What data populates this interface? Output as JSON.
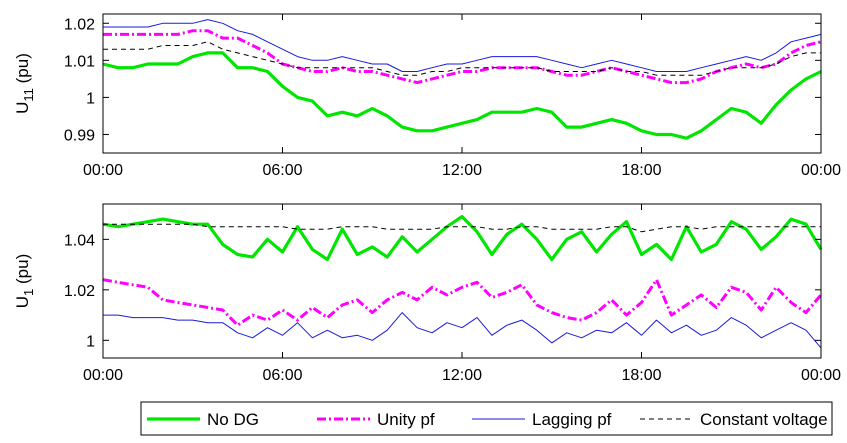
{
  "colors": {
    "no_dg": "#00e600",
    "unity_pf": "#ff00ff",
    "lagging_pf": "#1a1adc",
    "constant_voltage": "#000000"
  },
  "legend": {
    "placement": "bottom",
    "items": [
      {
        "label": "No DG",
        "style": "solid-thick",
        "color": "#00e600"
      },
      {
        "label": "Unity pf",
        "style": "dashdot-thick",
        "color": "#ff00ff"
      },
      {
        "label": "Lagging pf",
        "style": "solid-thin",
        "color": "#1a1adc"
      },
      {
        "label": "Constant voltage",
        "style": "dashed-thin",
        "color": "#000000"
      }
    ]
  },
  "chart_data": [
    {
      "type": "line",
      "title": "",
      "xlabel": "",
      "ylabel_main": "U",
      "ylabel_sub": "11",
      "ylabel_suffix": " (pu)",
      "xlim": [
        0,
        24
      ],
      "ylim": [
        0.985,
        1.0225
      ],
      "grid": false,
      "x_ticks": [
        0,
        6,
        12,
        18,
        24
      ],
      "x_tick_labels": [
        "00:00",
        "06:00",
        "12:00",
        "18:00",
        "00:00"
      ],
      "y_ticks": [
        0.99,
        1.0,
        1.01,
        1.02
      ],
      "y_tick_labels": [
        "0.99",
        "1",
        "1.01",
        "1.02"
      ],
      "x": [
        0,
        0.5,
        1,
        1.5,
        2,
        2.5,
        3,
        3.5,
        4,
        4.5,
        5,
        5.5,
        6,
        6.5,
        7,
        7.5,
        8,
        8.5,
        9,
        9.5,
        10,
        10.5,
        11,
        11.5,
        12,
        12.5,
        13,
        13.5,
        14,
        14.5,
        15,
        15.5,
        16,
        16.5,
        17,
        17.5,
        18,
        18.5,
        19,
        19.5,
        20,
        20.5,
        21,
        21.5,
        22,
        22.5,
        23,
        23.5,
        24
      ],
      "series": [
        {
          "name": "No DG",
          "values": [
            1.009,
            1.008,
            1.008,
            1.009,
            1.009,
            1.009,
            1.011,
            1.012,
            1.012,
            1.008,
            1.008,
            1.007,
            1.003,
            1.0,
            0.999,
            0.995,
            0.996,
            0.995,
            0.997,
            0.995,
            0.992,
            0.991,
            0.991,
            0.992,
            0.993,
            0.994,
            0.996,
            0.996,
            0.996,
            0.997,
            0.996,
            0.992,
            0.992,
            0.993,
            0.994,
            0.993,
            0.991,
            0.99,
            0.99,
            0.989,
            0.991,
            0.994,
            0.997,
            0.996,
            0.993,
            0.998,
            1.002,
            1.005,
            1.007
          ]
        },
        {
          "name": "Unity pf",
          "values": [
            1.017,
            1.017,
            1.017,
            1.017,
            1.017,
            1.017,
            1.018,
            1.018,
            1.016,
            1.016,
            1.014,
            1.012,
            1.009,
            1.008,
            1.007,
            1.007,
            1.008,
            1.007,
            1.007,
            1.006,
            1.005,
            1.004,
            1.005,
            1.006,
            1.007,
            1.007,
            1.008,
            1.008,
            1.008,
            1.008,
            1.007,
            1.006,
            1.006,
            1.007,
            1.008,
            1.007,
            1.006,
            1.005,
            1.004,
            1.004,
            1.005,
            1.007,
            1.008,
            1.009,
            1.008,
            1.009,
            1.012,
            1.014,
            1.015
          ]
        },
        {
          "name": "Lagging pf",
          "values": [
            1.019,
            1.019,
            1.019,
            1.019,
            1.02,
            1.02,
            1.02,
            1.021,
            1.02,
            1.018,
            1.017,
            1.015,
            1.013,
            1.011,
            1.01,
            1.01,
            1.011,
            1.01,
            1.009,
            1.009,
            1.007,
            1.007,
            1.008,
            1.009,
            1.009,
            1.01,
            1.011,
            1.011,
            1.011,
            1.011,
            1.01,
            1.009,
            1.008,
            1.009,
            1.01,
            1.009,
            1.008,
            1.007,
            1.007,
            1.007,
            1.008,
            1.009,
            1.01,
            1.011,
            1.01,
            1.012,
            1.015,
            1.016,
            1.017
          ]
        },
        {
          "name": "Constant voltage",
          "values": [
            1.013,
            1.013,
            1.013,
            1.013,
            1.014,
            1.014,
            1.014,
            1.015,
            1.013,
            1.012,
            1.011,
            1.01,
            1.009,
            1.008,
            1.008,
            1.008,
            1.008,
            1.008,
            1.008,
            1.007,
            1.006,
            1.006,
            1.007,
            1.007,
            1.008,
            1.008,
            1.008,
            1.008,
            1.008,
            1.008,
            1.007,
            1.007,
            1.007,
            1.007,
            1.008,
            1.007,
            1.007,
            1.006,
            1.006,
            1.006,
            1.006,
            1.007,
            1.008,
            1.008,
            1.008,
            1.009,
            1.011,
            1.012,
            1.012
          ]
        }
      ]
    },
    {
      "type": "line",
      "title": "",
      "xlabel": "",
      "ylabel_main": "U",
      "ylabel_sub": "1",
      "ylabel_suffix": " (pu)",
      "xlim": [
        0,
        24
      ],
      "ylim": [
        0.993,
        1.054
      ],
      "grid": false,
      "x_ticks": [
        0,
        6,
        12,
        18,
        24
      ],
      "x_tick_labels": [
        "00:00",
        "06:00",
        "12:00",
        "18:00",
        "00:00"
      ],
      "y_ticks": [
        1.0,
        1.02,
        1.04
      ],
      "y_tick_labels": [
        "1",
        "1.02",
        "1.04"
      ],
      "x": [
        0,
        0.5,
        1,
        1.5,
        2,
        2.5,
        3,
        3.5,
        4,
        4.5,
        5,
        5.5,
        6,
        6.5,
        7,
        7.5,
        8,
        8.5,
        9,
        9.5,
        10,
        10.5,
        11,
        11.5,
        12,
        12.5,
        13,
        13.5,
        14,
        14.5,
        15,
        15.5,
        16,
        16.5,
        17,
        17.5,
        18,
        18.5,
        19,
        19.5,
        20,
        20.5,
        21,
        21.5,
        22,
        22.5,
        23,
        23.5,
        24
      ],
      "series": [
        {
          "name": "No DG",
          "values": [
            1.046,
            1.045,
            1.046,
            1.047,
            1.048,
            1.047,
            1.046,
            1.046,
            1.038,
            1.034,
            1.033,
            1.04,
            1.035,
            1.045,
            1.036,
            1.032,
            1.044,
            1.034,
            1.037,
            1.033,
            1.041,
            1.035,
            1.04,
            1.045,
            1.049,
            1.043,
            1.034,
            1.042,
            1.046,
            1.04,
            1.032,
            1.04,
            1.043,
            1.035,
            1.042,
            1.047,
            1.034,
            1.038,
            1.032,
            1.045,
            1.035,
            1.038,
            1.047,
            1.044,
            1.036,
            1.041,
            1.048,
            1.046,
            1.036
          ]
        },
        {
          "name": "Unity pf",
          "values": [
            1.024,
            1.023,
            1.022,
            1.021,
            1.016,
            1.015,
            1.014,
            1.013,
            1.012,
            1.006,
            1.01,
            1.008,
            1.012,
            1.008,
            1.013,
            1.009,
            1.014,
            1.016,
            1.011,
            1.016,
            1.019,
            1.016,
            1.021,
            1.018,
            1.021,
            1.023,
            1.017,
            1.019,
            1.022,
            1.014,
            1.011,
            1.009,
            1.008,
            1.011,
            1.016,
            1.01,
            1.015,
            1.024,
            1.01,
            1.014,
            1.018,
            1.013,
            1.021,
            1.019,
            1.012,
            1.021,
            1.015,
            1.011,
            1.018
          ]
        },
        {
          "name": "Lagging pf",
          "values": [
            1.01,
            1.01,
            1.009,
            1.009,
            1.009,
            1.008,
            1.008,
            1.007,
            1.007,
            1.003,
            1.001,
            1.005,
            1.002,
            1.007,
            1.001,
            1.004,
            1.001,
            1.002,
            1.0,
            1.004,
            1.011,
            1.005,
            1.003,
            1.007,
            1.005,
            1.009,
            1.002,
            1.006,
            1.008,
            1.004,
            0.999,
            1.003,
            1.001,
            1.004,
            1.003,
            1.007,
            1.002,
            1.008,
            1.003,
            1.006,
            1.002,
            1.004,
            1.009,
            1.006,
            1.001,
            1.004,
            1.007,
            1.004,
            0.997
          ]
        },
        {
          "name": "Constant voltage",
          "values": [
            1.046,
            1.046,
            1.046,
            1.046,
            1.046,
            1.046,
            1.046,
            1.045,
            1.045,
            1.045,
            1.045,
            1.045,
            1.045,
            1.044,
            1.044,
            1.044,
            1.045,
            1.045,
            1.045,
            1.044,
            1.044,
            1.044,
            1.044,
            1.045,
            1.045,
            1.045,
            1.044,
            1.044,
            1.045,
            1.045,
            1.044,
            1.044,
            1.044,
            1.044,
            1.045,
            1.045,
            1.043,
            1.044,
            1.045,
            1.045,
            1.044,
            1.045,
            1.045,
            1.045,
            1.045,
            1.045,
            1.045,
            1.045,
            1.045
          ]
        }
      ]
    }
  ]
}
